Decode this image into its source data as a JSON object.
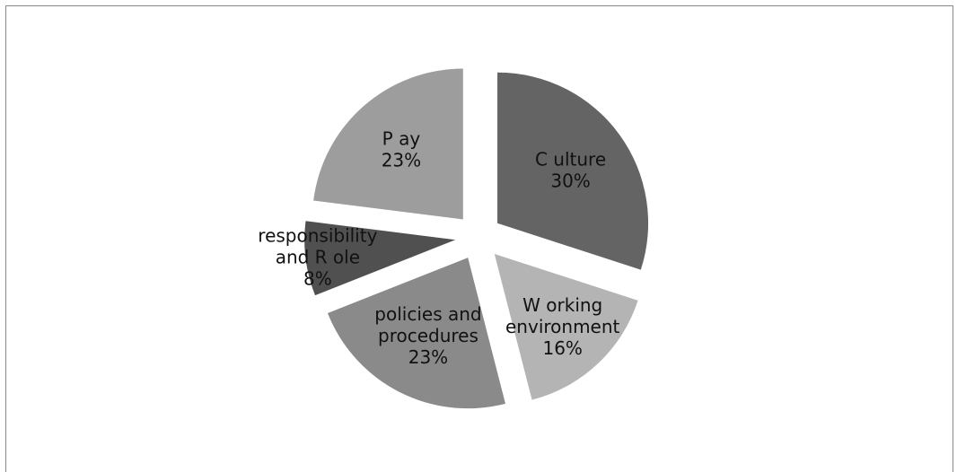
{
  "chart_data": {
    "type": "pie",
    "title": "",
    "exploded": true,
    "start_angle_deg": 0,
    "slices": [
      {
        "label_lines": [
          "C ulture",
          "30%"
        ],
        "value": 30,
        "color": "#646464"
      },
      {
        "label_lines": [
          "W orking",
          "environment",
          "16%"
        ],
        "value": 16,
        "color": "#b4b4b4"
      },
      {
        "label_lines": [
          "policies and",
          "procedures",
          "23%"
        ],
        "value": 23,
        "color": "#8a8a8a"
      },
      {
        "label_lines": [
          "responsibility",
          "and R ole",
          "8%"
        ],
        "value": 8,
        "color": "#505050"
      },
      {
        "label_lines": [
          "P ay",
          "23%"
        ],
        "value": 23,
        "color": "#9d9d9d"
      }
    ]
  }
}
